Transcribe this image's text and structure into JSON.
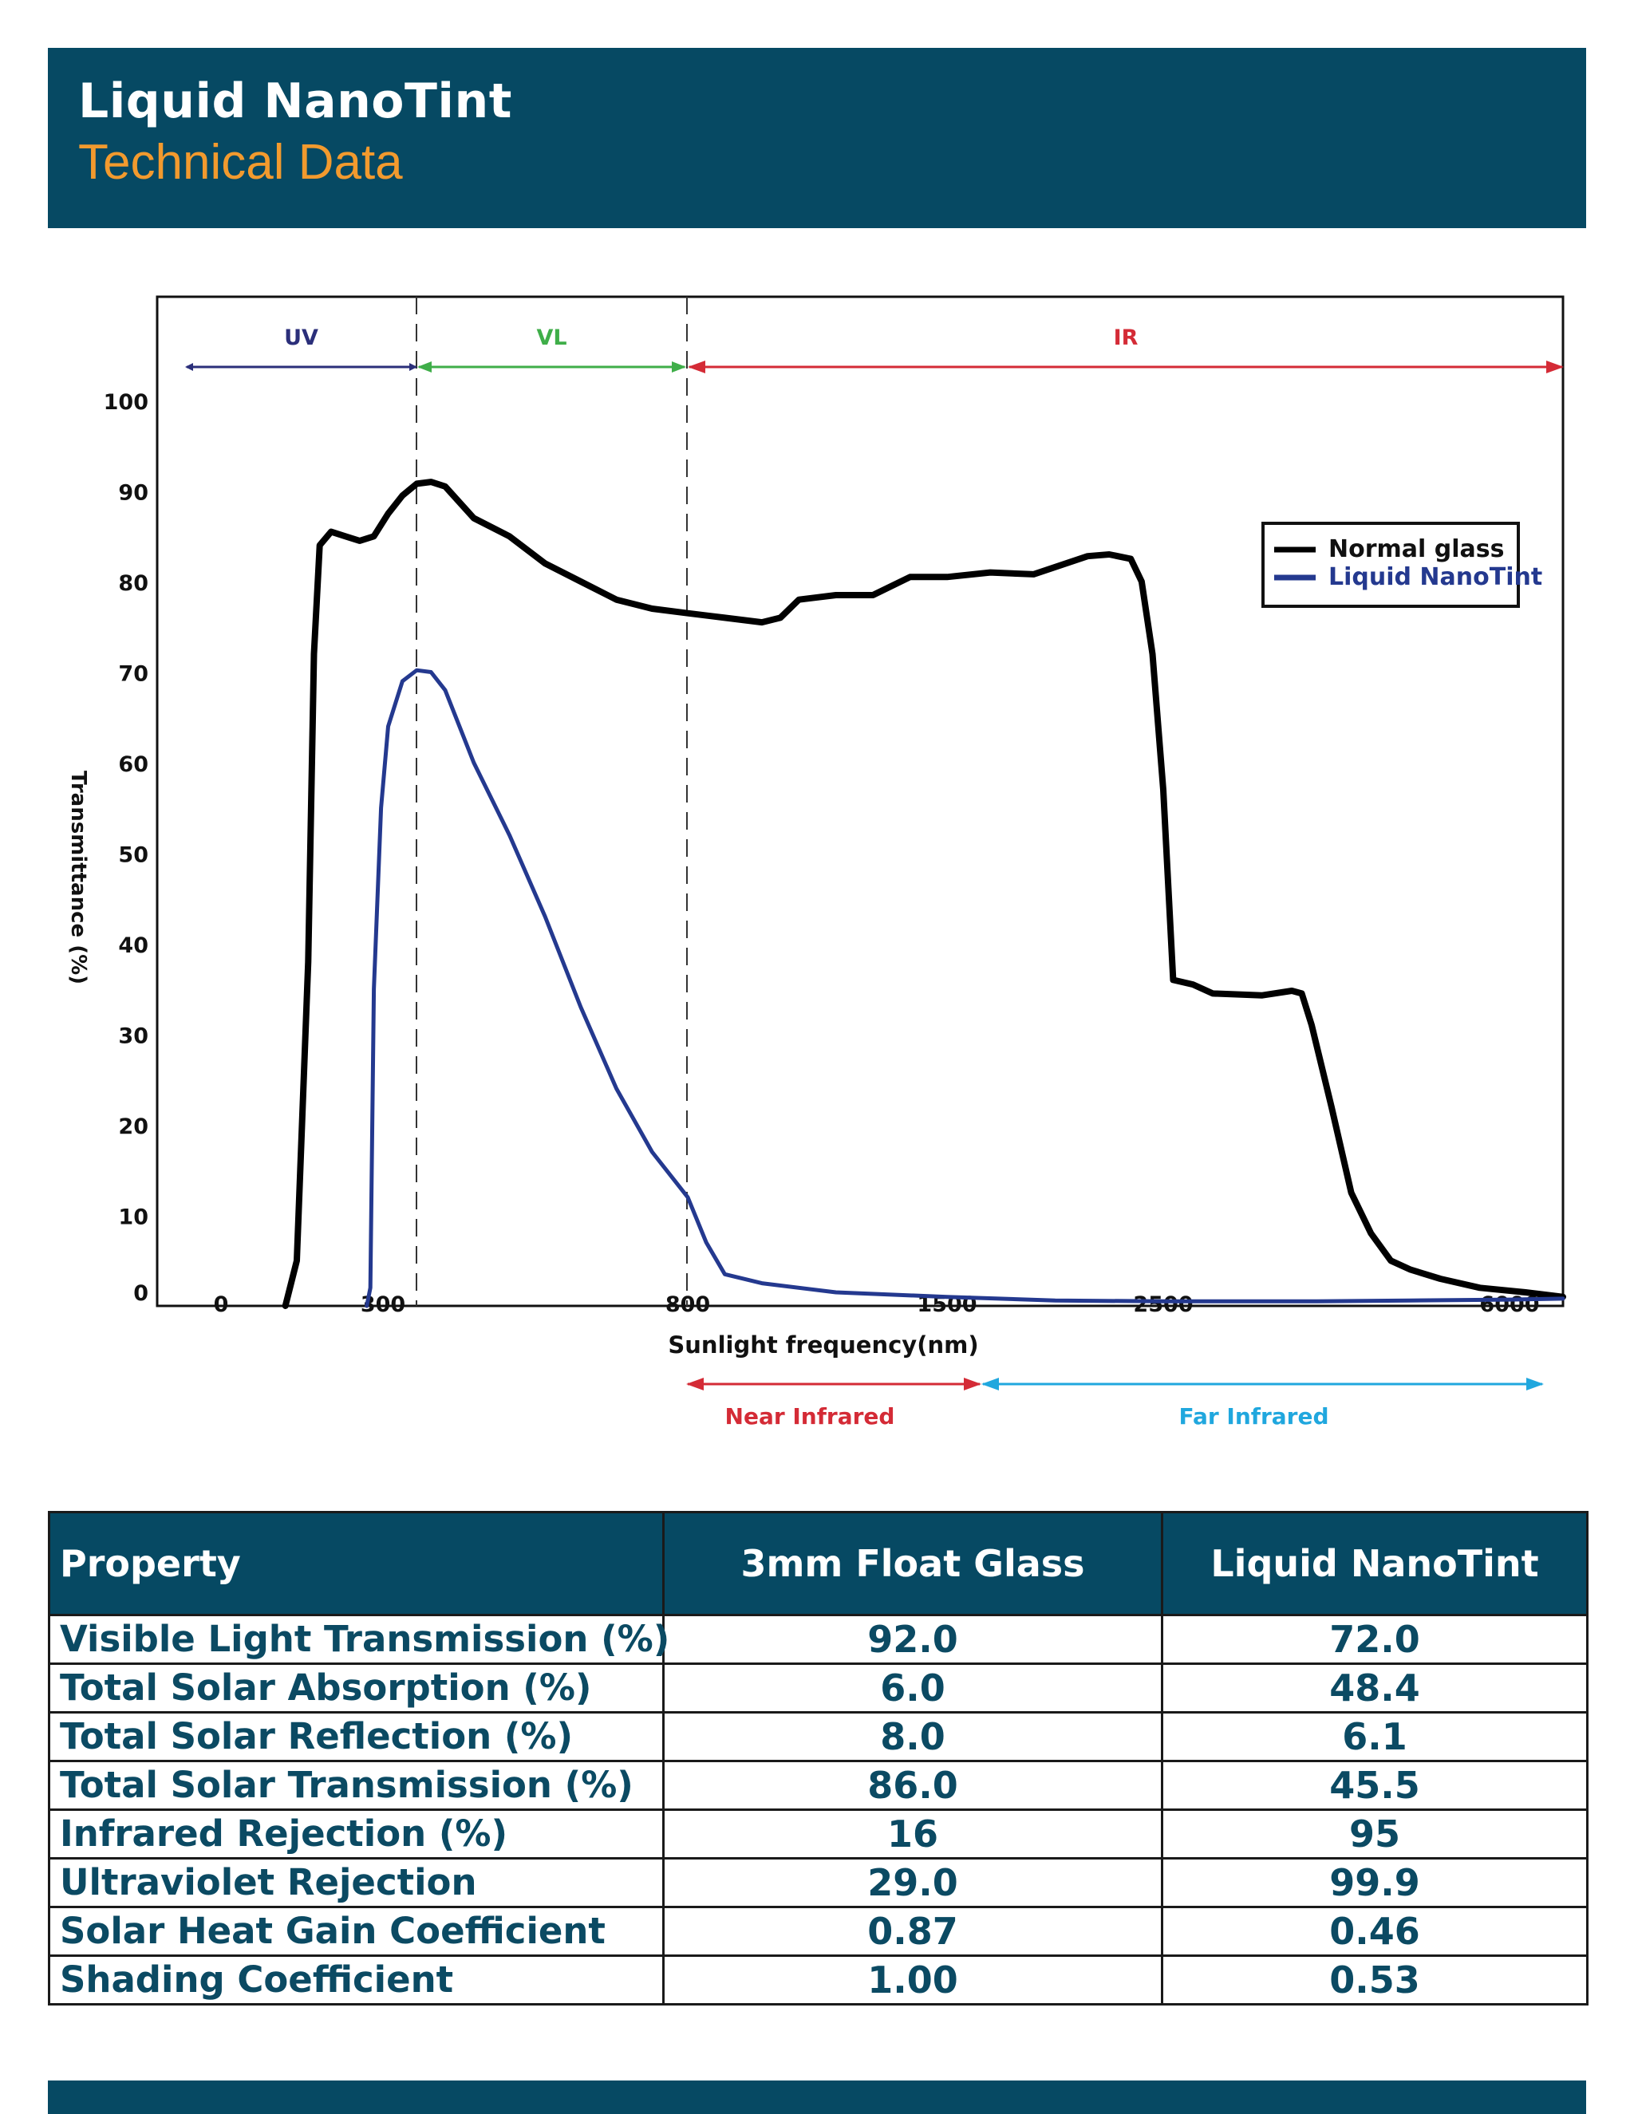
{
  "header": {
    "title": "Liquid NanoTint",
    "subtitle": "Technical Data"
  },
  "colors": {
    "header_bg": "#064963",
    "subtitle": "#f29a2e",
    "uv": "#2b2f7a",
    "vl": "#3fae49",
    "ir": "#d42b36",
    "far_infrared": "#20a7de",
    "normal_glass": "#000000",
    "liquid_nanotint": "#24398f"
  },
  "chart_data": {
    "type": "line",
    "title": "",
    "xlabel": "Sunlight frequency(nm)",
    "ylabel": "Transmittance (%)",
    "ylim": [
      0,
      100
    ],
    "y_ticks": [
      "0",
      "10",
      "20",
      "30",
      "40",
      "50",
      "60",
      "70",
      "80",
      "90",
      "100"
    ],
    "x_ticks": [
      "0",
      "300",
      "800",
      "1500",
      "2500",
      "6000"
    ],
    "bands": [
      {
        "name": "UV",
        "range_nm": [
          0,
          340
        ]
      },
      {
        "name": "VL",
        "range_nm": [
          340,
          800
        ]
      },
      {
        "name": "IR",
        "range_nm": [
          800,
          7000
        ]
      }
    ],
    "sub_bands": [
      {
        "name": "Near Infrared",
        "range_nm": [
          800,
          1600
        ]
      },
      {
        "name": "Far Infrared",
        "range_nm": [
          1600,
          6500
        ]
      }
    ],
    "legend": {
      "placement": "top-right"
    },
    "grid": false,
    "series": [
      {
        "name": "Normal glass",
        "color": "#000000",
        "x": [
          220,
          240,
          260,
          270,
          280,
          300,
          320,
          340,
          360,
          380,
          400,
          420,
          440,
          460,
          500,
          550,
          600,
          650,
          700,
          750,
          800,
          900,
          1000,
          1050,
          1100,
          1200,
          1300,
          1400,
          1500,
          1700,
          1900,
          2050,
          2150,
          2250,
          2350,
          2400,
          2450,
          2500,
          2600,
          2800,
          3000,
          3500,
          3800,
          3900,
          4000,
          4200,
          4400,
          4600,
          4800,
          5000,
          5300,
          5700,
          6300,
          7000
        ],
        "y": [
          0,
          5,
          38,
          72,
          84,
          85.5,
          85,
          84.5,
          85,
          87.5,
          89.5,
          90.8,
          91,
          90.5,
          87,
          85,
          82,
          80,
          78,
          77,
          76.5,
          76,
          75.5,
          76,
          78,
          78.5,
          78.5,
          80.5,
          80.5,
          81,
          80.8,
          82,
          82.8,
          83,
          82.5,
          80,
          72,
          57,
          36,
          35.5,
          34.5,
          34.3,
          34.8,
          34.5,
          31,
          22,
          12.5,
          8,
          5,
          4,
          3,
          2,
          1.5,
          1
        ]
      },
      {
        "name": "Liquid NanoTint",
        "color": "#24398f",
        "x": [
          350,
          355,
          360,
          370,
          380,
          400,
          420,
          440,
          460,
          480,
          500,
          550,
          600,
          650,
          700,
          750,
          800,
          850,
          900,
          1000,
          1200,
          1500,
          2000,
          2500,
          3000,
          4000,
          5000,
          6000,
          7000
        ],
        "y": [
          0,
          2,
          35,
          55,
          64,
          69,
          70.2,
          70,
          68,
          64,
          60,
          52,
          43,
          33,
          24,
          17,
          12,
          7,
          3.5,
          2.5,
          1.5,
          1,
          0.6,
          0.5,
          0.5,
          0.5,
          0.6,
          0.7,
          0.8
        ]
      }
    ]
  },
  "table": {
    "headers": [
      "Property",
      "3mm Float Glass",
      "Liquid NanoTint"
    ],
    "rows": [
      [
        "Visible Light Transmission (%)",
        "92.0",
        "72.0"
      ],
      [
        "Total Solar Absorption (%)",
        "6.0",
        "48.4"
      ],
      [
        "Total Solar Reflection (%)",
        "8.0",
        "6.1"
      ],
      [
        "Total Solar Transmission (%)",
        "86.0",
        "45.5"
      ],
      [
        "Infrared Rejection (%)",
        "16",
        "95"
      ],
      [
        "Ultraviolet Rejection",
        "29.0",
        "99.9"
      ],
      [
        "Solar Heat Gain Coefficient",
        "0.87",
        "0.46"
      ],
      [
        "Shading Coefficient",
        "1.00",
        "0.53"
      ]
    ]
  }
}
